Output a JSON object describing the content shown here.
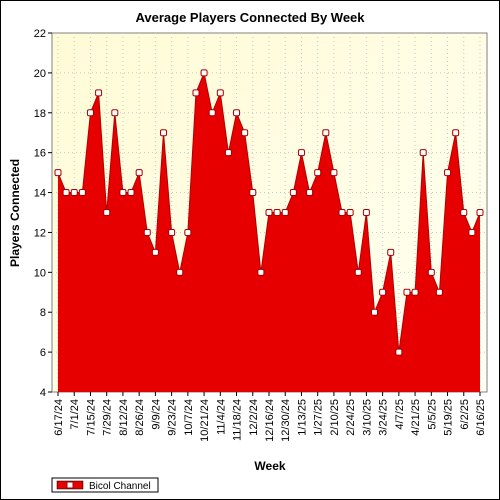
{
  "chart_data": {
    "type": "area",
    "title": "Average Players Connected By Week",
    "xlabel": "Week",
    "ylabel": "Players Connected",
    "ylim": [
      4,
      22
    ],
    "yticks": [
      4,
      6,
      8,
      10,
      12,
      14,
      16,
      18,
      20,
      22
    ],
    "grid": true,
    "legend_position": "bottom-left",
    "x_tick_labels": [
      "6/17/24",
      "7/1/24",
      "7/15/24",
      "7/29/24",
      "8/12/24",
      "8/26/24",
      "9/9/24",
      "9/23/24",
      "10/7/24",
      "10/21/24",
      "11/4/24",
      "11/18/24",
      "12/2/24",
      "12/16/24",
      "12/30/24",
      "1/13/25",
      "1/27/25",
      "2/10/25",
      "2/24/25",
      "3/10/25",
      "3/24/25",
      "4/7/25",
      "4/21/25",
      "5/5/25",
      "5/19/25",
      "6/2/25",
      "6/16/25"
    ],
    "series": [
      {
        "name": "Bicol Channel",
        "color": "#ff0000",
        "fill_color": "#e60000",
        "values": [
          15,
          14,
          14,
          14,
          18,
          19,
          13,
          18,
          14,
          14,
          15,
          12,
          11,
          17,
          12,
          10,
          12,
          19,
          20,
          18,
          19,
          16,
          18,
          17,
          14,
          10,
          13,
          13,
          13,
          14,
          16,
          14,
          15,
          17,
          15,
          13,
          13,
          10,
          13,
          8,
          9,
          11,
          6,
          9,
          9,
          16,
          10,
          9,
          15,
          17,
          13,
          12,
          13
        ]
      }
    ]
  },
  "colors": {
    "plot_background_top": "#fffbd6",
    "plot_background_bottom": "#fffff2",
    "grid": "#c8c8c8",
    "marker_fill": "#ffffff",
    "marker_stroke": "#aa0000"
  }
}
